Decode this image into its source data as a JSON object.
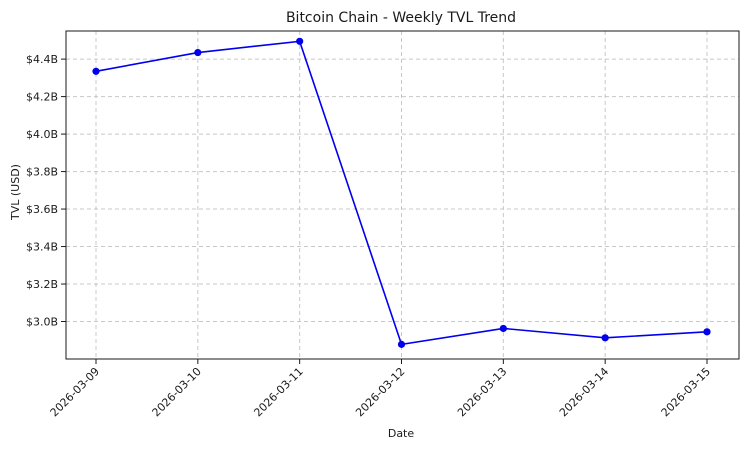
{
  "chart_data": {
    "type": "line",
    "title": "Bitcoin Chain - Weekly TVL Trend",
    "xlabel": "Date",
    "ylabel": "TVL (USD)",
    "x": [
      "2026-03-09",
      "2026-03-10",
      "2026-03-11",
      "2026-03-12",
      "2026-03-13",
      "2026-03-14",
      "2026-03-15"
    ],
    "y_tick_values": [
      3.0,
      3.2,
      3.4,
      3.6,
      3.8,
      4.0,
      4.2,
      4.4
    ],
    "y_tick_labels": [
      "$3.0B",
      "$3.2B",
      "$3.4B",
      "$3.6B",
      "$3.8B",
      "$4.0B",
      "$4.2B",
      "$4.4B"
    ],
    "ylim": [
      2.8,
      4.55
    ],
    "series": [
      {
        "values": [
          4.335,
          4.435,
          4.495,
          2.878,
          2.963,
          2.913,
          2.945
        ],
        "color": "#0000ee"
      }
    ],
    "grid": true
  }
}
